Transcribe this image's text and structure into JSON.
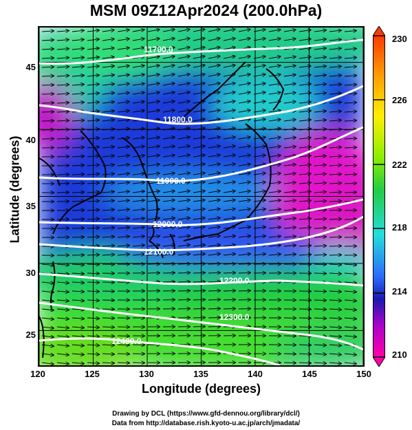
{
  "title": "MSM 09Z12Apr2024 (200.0hPa)",
  "xaxis": {
    "label": "Longitude (degrees)",
    "ticks": [
      "120",
      "125",
      "130",
      "135",
      "140",
      "145",
      "150"
    ],
    "range": [
      120,
      150
    ]
  },
  "yaxis": {
    "label": "Latitude  (degrees)",
    "ticks": [
      "25",
      "30",
      "35",
      "40",
      "45"
    ],
    "range": [
      22.4,
      47.6
    ]
  },
  "colorbar": {
    "ticks": [
      "230",
      "226",
      "222",
      "218",
      "214",
      "210"
    ],
    "range": [
      210,
      230
    ],
    "colors": [
      "#ff3a00",
      "#ffcc00",
      "#aaff00",
      "#22cc33",
      "#22dddd",
      "#2a6aff",
      "#1a1ab0",
      "#cc00cc",
      "#ff00aa"
    ]
  },
  "contours": [
    {
      "label": "11700.0"
    },
    {
      "label": "11800.0"
    },
    {
      "label": "11900.0"
    },
    {
      "label": "12000.0"
    },
    {
      "label": "12100.0"
    },
    {
      "label": "12200.0"
    },
    {
      "label": "12300.0"
    },
    {
      "label": "12400.0"
    }
  ],
  "credits": {
    "line1": "Drawing by DCL (https://www.gfd-dennou.org/library/dcl/)",
    "line2": "Data from http://database.rish.kyoto-u.ac.jp/arch/jmadata/"
  }
}
